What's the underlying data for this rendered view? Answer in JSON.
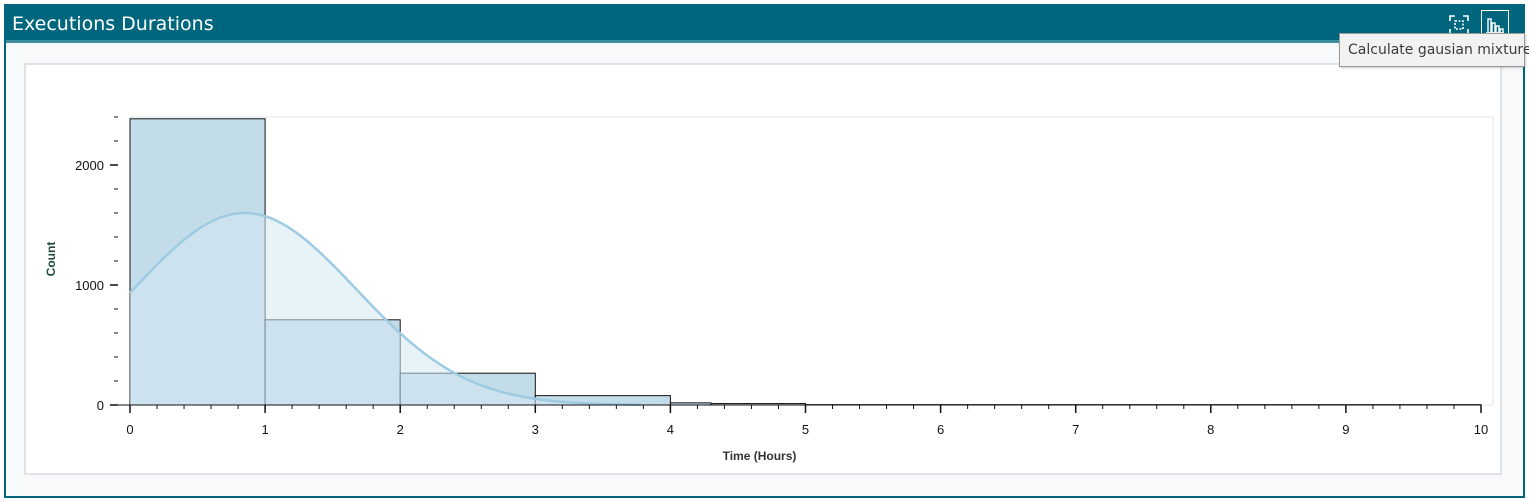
{
  "panel": {
    "title": "Executions Durations",
    "buttons": [
      {
        "icon": "fit-view-icon"
      },
      {
        "icon": "histogram-icon"
      }
    ],
    "tooltip": "Calculate gausian mixture"
  },
  "colors": {
    "header_bg": "#00667d",
    "bar_fill": "#c2dcea",
    "curve": "#9ecbe2",
    "curve_fill": "#d6e9f3"
  },
  "chart_data": {
    "type": "bar",
    "title": "",
    "xlabel": "Time (Hours)",
    "ylabel": "Count",
    "xlim": [
      0,
      10
    ],
    "ylim": [
      0,
      2400
    ],
    "x_ticks": [
      0,
      1,
      2,
      3,
      4,
      5,
      6,
      7,
      8,
      9,
      10
    ],
    "y_ticks": [
      0,
      1000,
      2000
    ],
    "bins": [
      {
        "from": 0,
        "to": 1,
        "count": 2385
      },
      {
        "from": 1,
        "to": 2,
        "count": 710
      },
      {
        "from": 2,
        "to": 3,
        "count": 265
      },
      {
        "from": 3,
        "to": 4,
        "count": 78
      },
      {
        "from": 4,
        "to": 4.3,
        "count": 18
      },
      {
        "from": 4.3,
        "to": 5,
        "count": 12
      },
      {
        "from": 5,
        "to": 10,
        "count": 3
      }
    ],
    "fit_curve": {
      "name": "gaussian",
      "mean": 0.85,
      "sd": 0.82,
      "peak": 1600
    },
    "grid": false,
    "legend": "none"
  }
}
